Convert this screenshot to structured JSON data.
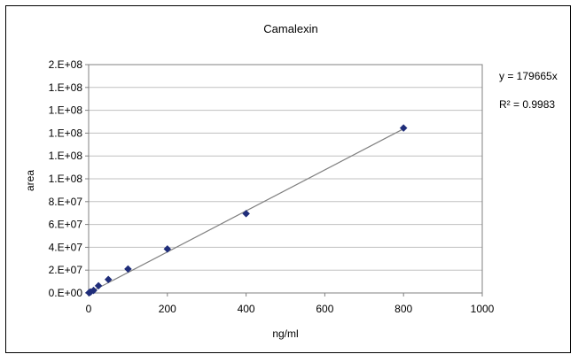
{
  "chart_data": {
    "type": "scatter",
    "title": "Camalexin",
    "xlabel": "ng/ml",
    "ylabel": "area",
    "xlim": [
      0,
      1000
    ],
    "ylim": [
      0,
      200000000
    ],
    "xticks": [
      0,
      200,
      400,
      600,
      800,
      1000
    ],
    "yticks": [
      0,
      20000000,
      40000000,
      60000000,
      80000000,
      100000000,
      120000000,
      140000000,
      160000000,
      180000000,
      200000000
    ],
    "xtick_labels": [
      "0",
      "200",
      "400",
      "600",
      "800",
      "1000"
    ],
    "ytick_labels": [
      "0.E+00",
      "2.E+07",
      "4.E+07",
      "6.E+07",
      "8.E+07",
      "1.E+08",
      "1.E+08",
      "1.E+08",
      "1.E+08",
      "1.E+08",
      "2.E+08"
    ],
    "grid": true,
    "legend": "none",
    "series": [
      {
        "marker": "diamond",
        "color": "#1f2d7a",
        "x": [
          1,
          2.5,
          5,
          12.5,
          25,
          50,
          100,
          200,
          400,
          800
        ],
        "y": [
          200000,
          450000,
          900000,
          2200000,
          6300000,
          11800000,
          21000000,
          38500000,
          69500000,
          144500000
        ]
      }
    ],
    "trendline": {
      "type": "linear",
      "slope": 179665,
      "intercept": 0,
      "x_range": [
        0,
        800
      ],
      "color": "#808080",
      "equation": "y = 179665x",
      "r_squared": "R² = 0.9983"
    }
  }
}
